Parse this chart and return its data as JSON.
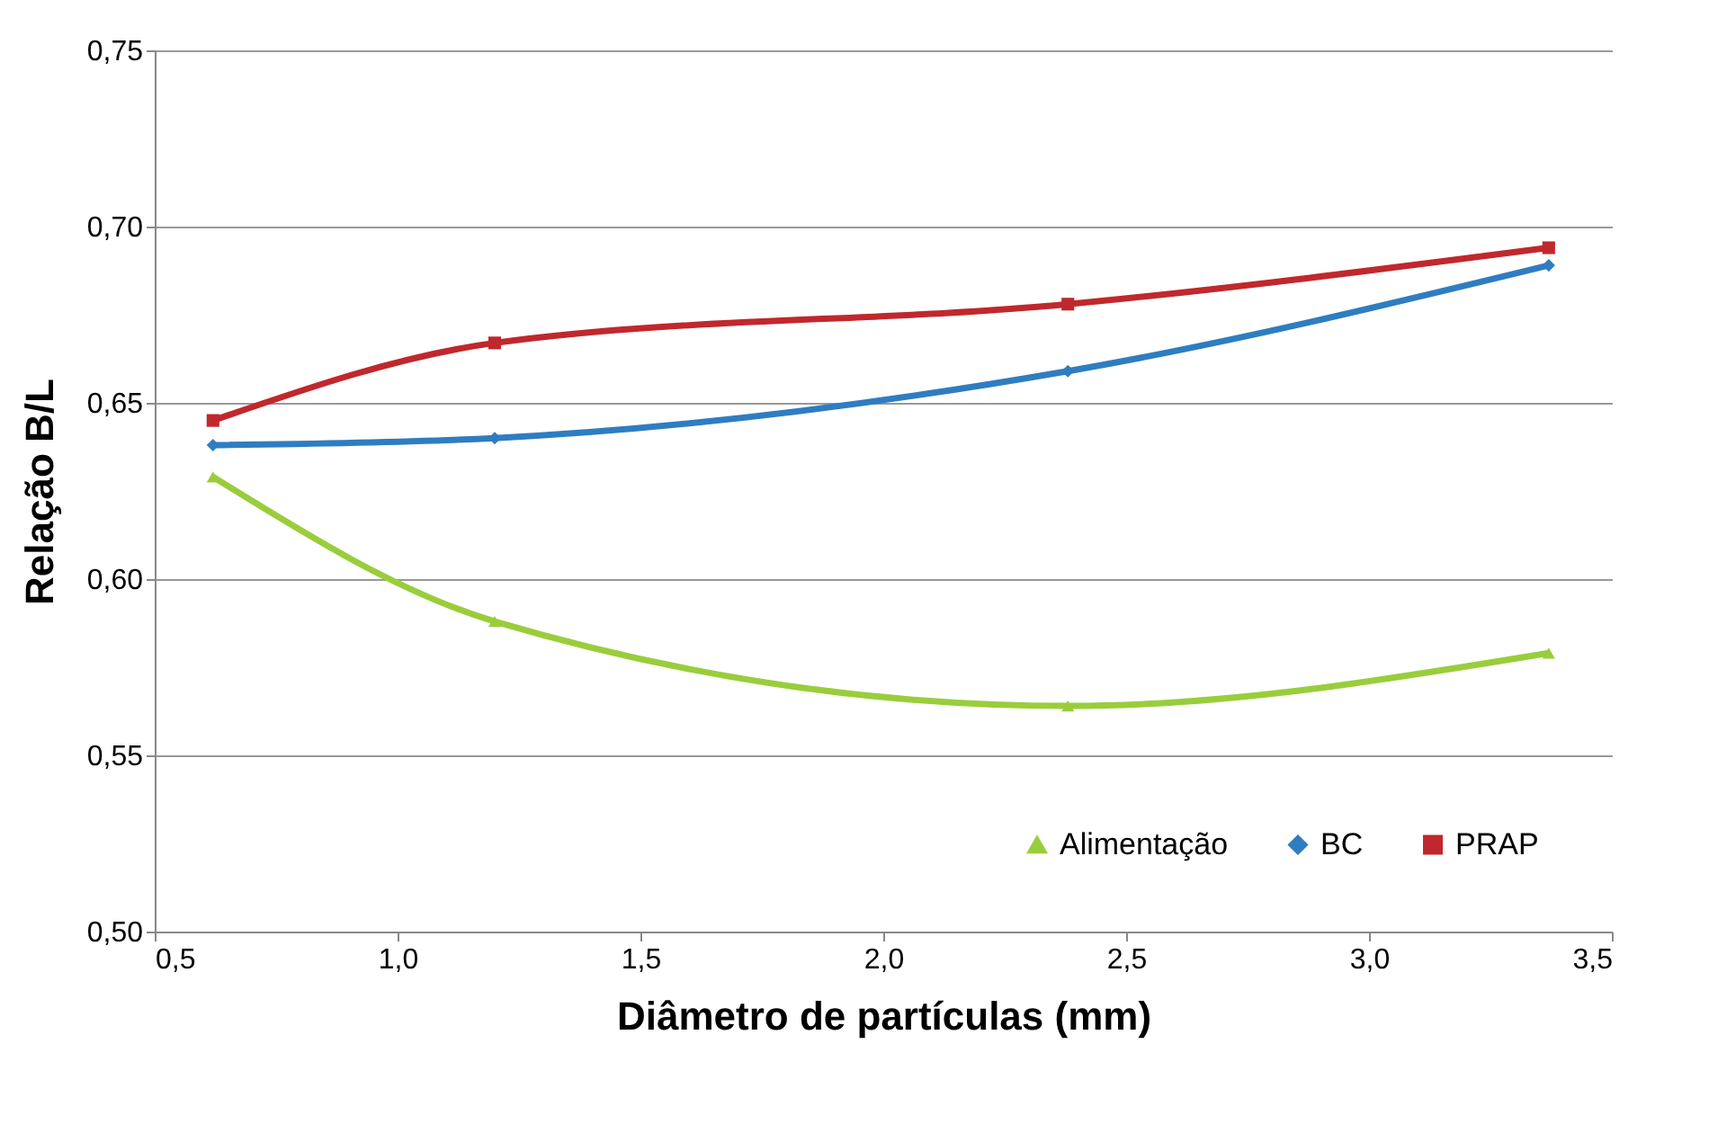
{
  "chart_data": {
    "type": "line",
    "xlabel": "Diâmetro de partículas (mm)",
    "ylabel": "Relação B/L",
    "x": [
      0.62,
      1.2,
      2.38,
      3.37
    ],
    "series": [
      {
        "name": "Alimentação",
        "color": "#9acd3c",
        "marker": "triangle",
        "values": [
          0.629,
          0.588,
          0.564,
          0.579
        ]
      },
      {
        "name": "BC",
        "color": "#2f7dc1",
        "marker": "diamond",
        "values": [
          0.638,
          0.64,
          0.659,
          0.689
        ]
      },
      {
        "name": "PRAP",
        "color": "#c0282d",
        "marker": "square",
        "values": [
          0.645,
          0.667,
          0.678,
          0.694
        ]
      }
    ],
    "xlim": [
      0.5,
      3.5
    ],
    "xticks": [
      {
        "value": 0.5,
        "label": "0,5"
      },
      {
        "value": 1.0,
        "label": "1,0"
      },
      {
        "value": 1.5,
        "label": "1,5"
      },
      {
        "value": 2.0,
        "label": "2,0"
      },
      {
        "value": 2.5,
        "label": "2,5"
      },
      {
        "value": 3.0,
        "label": "3,0"
      },
      {
        "value": 3.5,
        "label": "3,5"
      }
    ],
    "ylim": [
      0.5,
      0.75
    ],
    "yticks": [
      {
        "value": 0.5,
        "label": "0,50"
      },
      {
        "value": 0.55,
        "label": "0,55"
      },
      {
        "value": 0.6,
        "label": "0,60"
      },
      {
        "value": 0.65,
        "label": "0,65"
      },
      {
        "value": 0.7,
        "label": "0,70"
      },
      {
        "value": 0.75,
        "label": "0,75"
      }
    ],
    "grid": "y",
    "legend": "bottom right"
  }
}
